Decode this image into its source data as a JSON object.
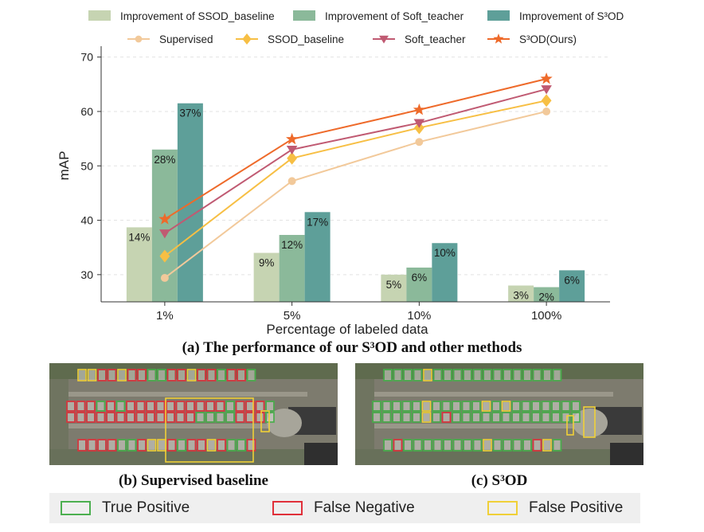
{
  "chart_data": {
    "type": "bar",
    "categories": [
      "1%",
      "5%",
      "10%",
      "100%"
    ],
    "xlabel": "Percentage of labeled data",
    "ylabel": "mAP",
    "ylim": [
      25,
      72
    ],
    "yticks": [
      30,
      40,
      50,
      60,
      70
    ],
    "bar_series": [
      {
        "name": "Improvement of SSOD_baseline",
        "color": "#c6d4b2",
        "values": [
          38.7,
          34.0,
          30.0,
          28.0
        ],
        "labels": [
          "14%",
          "9%",
          "5%",
          "3%"
        ]
      },
      {
        "name": "Improvement of Soft_teacher",
        "color": "#8bb99a",
        "values": [
          53.0,
          37.3,
          31.3,
          27.7
        ],
        "labels": [
          "28%",
          "12%",
          "6%",
          "2%"
        ]
      },
      {
        "name": "Improvement of S³OD",
        "color": "#5e9f99",
        "values": [
          61.5,
          41.5,
          35.8,
          30.8
        ],
        "labels": [
          "37%",
          "17%",
          "10%",
          "6%"
        ]
      }
    ],
    "line_series": [
      {
        "name": "Supervised",
        "color": "#f2c99a",
        "marker": "circle",
        "values": [
          29.4,
          47.2,
          54.4,
          60.0
        ]
      },
      {
        "name": "SSOD_baseline",
        "color": "#f7bf44",
        "marker": "diamond",
        "values": [
          33.4,
          51.4,
          57.0,
          62.0
        ]
      },
      {
        "name": "Soft_teacher",
        "color": "#c05a72",
        "marker": "triangle-down",
        "values": [
          37.6,
          53.0,
          57.9,
          64.1
        ]
      },
      {
        "name": "S³OD(Ours)",
        "color": "#ee6a2a",
        "marker": "star",
        "values": [
          40.2,
          54.9,
          60.3,
          66.0
        ]
      }
    ],
    "legend_position": "top",
    "grid": "horizontal dashed"
  },
  "captions": {
    "a": "(a) The performance of our S³OD and other methods",
    "b": "(b) Supervised baseline",
    "c": "(c) S³OD"
  },
  "box_legend": [
    {
      "label": "True Positive",
      "color": "#4caf50"
    },
    {
      "label": "False Negative",
      "color": "#e0303a"
    },
    {
      "label": "False Positive",
      "color": "#f0d038"
    }
  ]
}
